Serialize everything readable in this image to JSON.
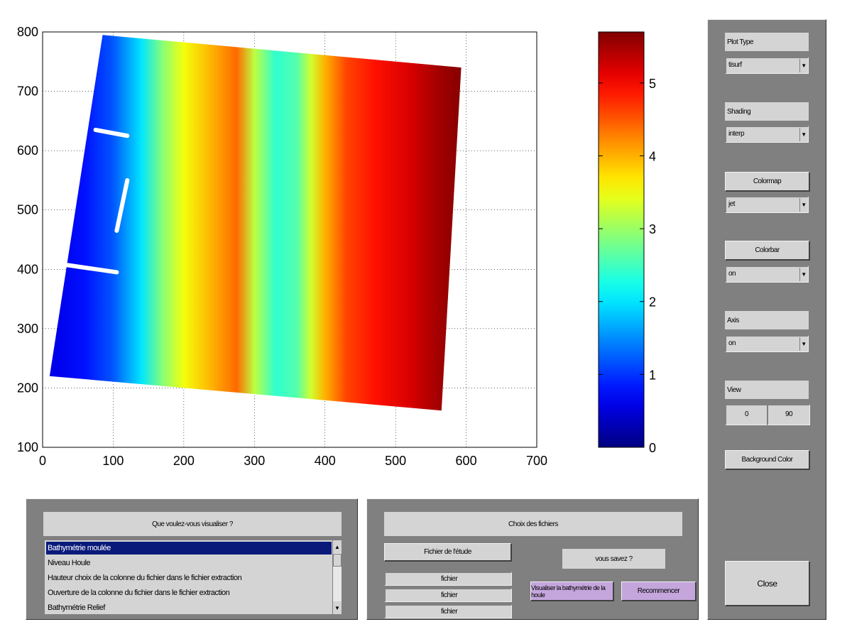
{
  "colors": {
    "panel": "#808080",
    "control": "#d4d4d4",
    "accent_purple": "#c4a6dc",
    "selection": "#0a1a7a"
  },
  "chart_data": {
    "type": "heatmap",
    "colormap": "jet",
    "x_ticks": [
      "0",
      "100",
      "200",
      "300",
      "400",
      "500",
      "600",
      "700"
    ],
    "y_ticks": [
      "800",
      "700",
      "600",
      "500",
      "400",
      "300",
      "200",
      "100"
    ],
    "xlim": [
      0,
      700
    ],
    "ylim": [
      100,
      800
    ],
    "grid": true,
    "colorbar": {
      "ticks": [
        "5",
        "4",
        "3",
        "2",
        "1",
        "0"
      ],
      "range": [
        0,
        5.7
      ]
    },
    "domain_corners": [
      [
        85,
        795
      ],
      [
        593,
        740
      ],
      [
        565,
        162
      ],
      [
        10,
        220
      ]
    ],
    "breakwaters": [
      {
        "from": [
          75,
          635
        ],
        "to": [
          120,
          625
        ]
      },
      {
        "from": [
          105,
          465
        ],
        "to": [
          120,
          550
        ]
      },
      {
        "from": [
          30,
          408
        ],
        "to": [
          105,
          395
        ]
      }
    ],
    "x_profile": [
      {
        "x": 20,
        "value": 0.6
      },
      {
        "x": 60,
        "value": 0.8
      },
      {
        "x": 100,
        "value": 1.2
      },
      {
        "x": 140,
        "value": 2.0
      },
      {
        "x": 170,
        "value": 2.9
      },
      {
        "x": 200,
        "value": 3.5
      },
      {
        "x": 240,
        "value": 4.0
      },
      {
        "x": 275,
        "value": 4.4
      },
      {
        "x": 300,
        "value": 3.2
      },
      {
        "x": 330,
        "value": 2.4
      },
      {
        "x": 360,
        "value": 2.6
      },
      {
        "x": 380,
        "value": 3.3
      },
      {
        "x": 400,
        "value": 4.0
      },
      {
        "x": 430,
        "value": 4.6
      },
      {
        "x": 470,
        "value": 4.9
      },
      {
        "x": 520,
        "value": 5.2
      },
      {
        "x": 560,
        "value": 5.5
      },
      {
        "x": 600,
        "value": 5.7
      }
    ]
  },
  "right_panel": {
    "plot_type": {
      "label": "Plot Type",
      "value": "tisurf"
    },
    "shading": {
      "label": "Shading",
      "value": "interp"
    },
    "colormap_button": "Colormap",
    "colormap_value": "jet",
    "colorbar_button": "Colorbar",
    "colorbar_value": "on",
    "axis": {
      "label": "Axis",
      "value": "on"
    },
    "view": {
      "label": "View",
      "az": "0",
      "el": "90"
    },
    "background_button": "Background Color",
    "close_button": "Close"
  },
  "bottom_left": {
    "title": "Que voulez-vous visualiser ?",
    "items": [
      "Bathymétrie moulée",
      "Niveau Houle",
      "Hauteur choix de la colonne du fichier dans le fichier extraction",
      "Ouverture de la colonne du fichier dans le fichier extraction",
      "Bathymétrie Relief"
    ],
    "selected_index": 0
  },
  "bottom_right": {
    "title": "Choix des fichiers",
    "file_button": "Fichier de l'étude",
    "fields": [
      "fichier",
      "fichier",
      "fichier"
    ],
    "info_button": "vous savez ?",
    "action_button": "Visualiser la bathymétrie de la houle",
    "restart_button": "Recommencer"
  }
}
